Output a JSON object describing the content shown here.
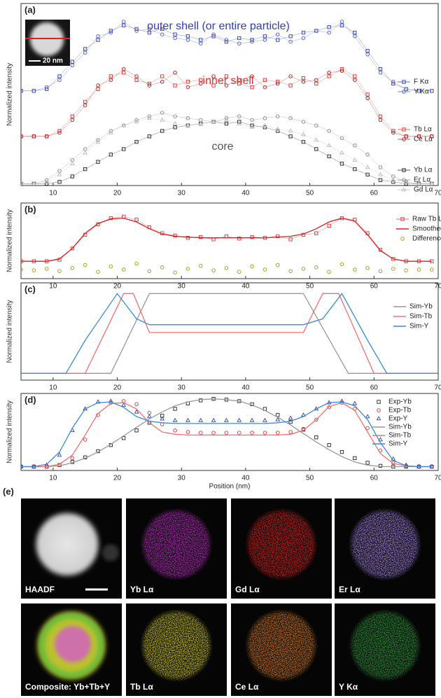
{
  "chart_data": [
    {
      "type": "line",
      "label": "(a)",
      "ylabel": "Normalized intensity",
      "xlim": [
        5,
        70
      ],
      "ylim": [
        0,
        1
      ],
      "xticks": [
        10,
        20,
        30,
        40,
        50,
        60,
        70
      ],
      "annotations": [
        {
          "text": "outer shell (or entire particle)",
          "color": "#2f3fb0"
        },
        {
          "text": "inner shell",
          "color": "#e03030"
        },
        {
          "text": "core",
          "color": "#555555"
        },
        {
          "text": "20 nm",
          "color": "#ffffff"
        }
      ],
      "x": [
        5,
        7,
        9,
        11,
        13,
        15,
        17,
        19,
        21,
        23,
        25,
        27,
        29,
        31,
        33,
        35,
        37,
        39,
        41,
        43,
        45,
        47,
        49,
        51,
        53,
        55,
        57,
        59,
        61,
        63,
        65,
        67,
        69
      ],
      "series": [
        {
          "name": "F Kα",
          "color": "#2f3fb0",
          "marker": "square",
          "line": "thin",
          "values": [
            0.52,
            0.52,
            0.53,
            0.6,
            0.68,
            0.75,
            0.8,
            0.85,
            0.88,
            0.86,
            0.84,
            0.86,
            0.83,
            0.82,
            0.8,
            0.82,
            0.79,
            0.81,
            0.8,
            0.82,
            0.8,
            0.82,
            0.84,
            0.85,
            0.87,
            0.88,
            0.84,
            0.74,
            0.64,
            0.56,
            0.53,
            0.52,
            0.52
          ]
        },
        {
          "name": "Y Kα",
          "color": "#5060c0",
          "marker": "circle",
          "line": "thin",
          "values": [
            0.52,
            0.52,
            0.54,
            0.58,
            0.66,
            0.73,
            0.82,
            0.84,
            0.9,
            0.85,
            0.86,
            0.83,
            0.81,
            0.8,
            0.78,
            0.83,
            0.8,
            0.78,
            0.79,
            0.8,
            0.83,
            0.79,
            0.81,
            0.85,
            0.84,
            0.9,
            0.82,
            0.72,
            0.62,
            0.57,
            0.53,
            0.52,
            0.52
          ]
        },
        {
          "name": "Tb Lα",
          "color": "#e03030",
          "marker": "square",
          "line": "thin",
          "values": [
            0.27,
            0.27,
            0.27,
            0.3,
            0.38,
            0.46,
            0.53,
            0.6,
            0.62,
            0.58,
            0.56,
            0.6,
            0.55,
            0.57,
            0.58,
            0.55,
            0.6,
            0.56,
            0.54,
            0.58,
            0.57,
            0.55,
            0.59,
            0.56,
            0.6,
            0.64,
            0.6,
            0.5,
            0.38,
            0.3,
            0.27,
            0.27,
            0.27
          ]
        },
        {
          "name": "Ce Lα",
          "color": "#a02020",
          "marker": "circle",
          "line": "thin",
          "values": [
            0.27,
            0.27,
            0.27,
            0.29,
            0.36,
            0.44,
            0.55,
            0.58,
            0.64,
            0.6,
            0.55,
            0.57,
            0.62,
            0.54,
            0.56,
            0.6,
            0.55,
            0.58,
            0.6,
            0.54,
            0.56,
            0.6,
            0.57,
            0.58,
            0.62,
            0.63,
            0.58,
            0.48,
            0.36,
            0.29,
            0.27,
            0.27,
            0.27
          ]
        },
        {
          "name": "Yb Lα",
          "color": "#222222",
          "marker": "square",
          "line": "thin",
          "values": [
            0.01,
            0.01,
            0.01,
            0.02,
            0.05,
            0.09,
            0.13,
            0.17,
            0.2,
            0.24,
            0.27,
            0.3,
            0.32,
            0.33,
            0.34,
            0.35,
            0.34,
            0.35,
            0.33,
            0.32,
            0.3,
            0.27,
            0.24,
            0.2,
            0.16,
            0.12,
            0.09,
            0.06,
            0.03,
            0.02,
            0.01,
            0.01,
            0.01
          ]
        },
        {
          "name": "Er Lα",
          "color": "#888888",
          "marker": "circle",
          "line": "thin",
          "values": [
            0.01,
            0.01,
            0.03,
            0.08,
            0.14,
            0.2,
            0.25,
            0.3,
            0.33,
            0.36,
            0.38,
            0.4,
            0.38,
            0.37,
            0.36,
            0.35,
            0.37,
            0.38,
            0.36,
            0.37,
            0.38,
            0.37,
            0.35,
            0.33,
            0.3,
            0.26,
            0.22,
            0.17,
            0.1,
            0.05,
            0.02,
            0.01,
            0.01
          ]
        },
        {
          "name": "Gd Lα",
          "color": "#bbbbbb",
          "marker": "triangle",
          "line": "thin",
          "values": [
            0.01,
            0.01,
            0.02,
            0.06,
            0.12,
            0.18,
            0.24,
            0.29,
            0.33,
            0.35,
            0.37,
            0.36,
            0.34,
            0.33,
            0.34,
            0.35,
            0.36,
            0.34,
            0.32,
            0.33,
            0.31,
            0.3,
            0.28,
            0.25,
            0.22,
            0.18,
            0.14,
            0.1,
            0.06,
            0.03,
            0.02,
            0.01,
            0.01
          ]
        }
      ]
    },
    {
      "type": "line",
      "label": "(b)",
      "ylabel": "Normalized intensity",
      "xlim": [
        5,
        70
      ],
      "ylim": [
        0,
        1
      ],
      "xticks": [
        10,
        20,
        30,
        40,
        50,
        60,
        70
      ],
      "x": [
        5,
        7,
        9,
        11,
        13,
        15,
        17,
        19,
        21,
        23,
        25,
        27,
        29,
        31,
        33,
        35,
        37,
        39,
        41,
        43,
        45,
        47,
        49,
        51,
        53,
        55,
        57,
        59,
        61,
        63,
        65,
        67,
        69
      ],
      "series": [
        {
          "name": "Raw Tb Lα",
          "color": "#e03030",
          "marker": "square",
          "line": "thin",
          "values": [
            0.23,
            0.23,
            0.23,
            0.25,
            0.4,
            0.58,
            0.72,
            0.8,
            0.82,
            0.78,
            0.68,
            0.6,
            0.57,
            0.54,
            0.55,
            0.52,
            0.56,
            0.53,
            0.55,
            0.54,
            0.56,
            0.52,
            0.58,
            0.6,
            0.7,
            0.8,
            0.78,
            0.6,
            0.38,
            0.26,
            0.23,
            0.23,
            0.23
          ]
        },
        {
          "name": "Smoothed",
          "color": "#d42020",
          "marker": "none",
          "line": "solid",
          "values": [
            0.23,
            0.23,
            0.23,
            0.26,
            0.4,
            0.6,
            0.73,
            0.79,
            0.8,
            0.75,
            0.66,
            0.59,
            0.56,
            0.55,
            0.54,
            0.54,
            0.54,
            0.54,
            0.54,
            0.54,
            0.55,
            0.56,
            0.59,
            0.66,
            0.75,
            0.8,
            0.76,
            0.58,
            0.37,
            0.26,
            0.23,
            0.23,
            0.23
          ]
        },
        {
          "name": "Difference",
          "color": "#9a9a10",
          "marker": "circle",
          "line": "none",
          "values": [
            0.12,
            0.11,
            0.13,
            0.1,
            0.14,
            0.18,
            0.09,
            0.16,
            0.12,
            0.2,
            0.1,
            0.15,
            0.08,
            0.13,
            0.17,
            0.11,
            0.14,
            0.09,
            0.16,
            0.12,
            0.18,
            0.1,
            0.13,
            0.15,
            0.09,
            0.19,
            0.12,
            0.14,
            0.1,
            0.13,
            0.11,
            0.12,
            0.12
          ]
        }
      ]
    },
    {
      "type": "line",
      "label": "(c)",
      "ylabel": "Normalized intensity",
      "xlim": [
        5,
        70
      ],
      "ylim": [
        0,
        1
      ],
      "xticks": [
        10,
        20,
        30,
        40,
        50,
        60,
        70
      ],
      "series": [
        {
          "name": "Sim-Yb",
          "color": "#999999",
          "marker": "none",
          "line": "solid",
          "x": [
            5,
            19,
            25,
            49,
            56,
            70
          ],
          "values": [
            0.07,
            0.07,
            0.89,
            0.89,
            0.07,
            0.07
          ]
        },
        {
          "name": "Sim-Tb",
          "color": "#f07070",
          "marker": "none",
          "line": "solid",
          "x": [
            5,
            15,
            21,
            22.5,
            25,
            49,
            52,
            54.5,
            60,
            70
          ],
          "values": [
            0.07,
            0.07,
            0.89,
            0.89,
            0.49,
            0.49,
            0.89,
            0.89,
            0.07,
            0.07
          ]
        },
        {
          "name": "Sim-Y",
          "color": "#3a8ad8",
          "marker": "none",
          "line": "solid",
          "x": [
            5,
            12,
            15,
            20,
            23,
            25,
            49,
            52,
            55,
            59,
            62,
            70
          ],
          "values": [
            0.07,
            0.07,
            0.41,
            0.89,
            0.63,
            0.57,
            0.57,
            0.63,
            0.89,
            0.41,
            0.07,
            0.07
          ]
        }
      ]
    },
    {
      "type": "line",
      "label": "(d)",
      "ylabel": "Normalized intensity",
      "xlabel": "Position (nm)",
      "xlim": [
        5,
        70
      ],
      "ylim": [
        0,
        1
      ],
      "xticks": [
        10,
        20,
        30,
        40,
        50,
        60,
        70
      ],
      "x": [
        5,
        7,
        9,
        11,
        13,
        15,
        17,
        19,
        21,
        23,
        25,
        27,
        29,
        31,
        33,
        35,
        37,
        39,
        41,
        43,
        45,
        47,
        49,
        51,
        53,
        55,
        57,
        59,
        61,
        63,
        65,
        67,
        69
      ],
      "series": [
        {
          "name": "Exp-Yb",
          "color": "#222222",
          "marker": "square",
          "line": "none",
          "values": [
            0.05,
            0.05,
            0.05,
            0.07,
            0.11,
            0.17,
            0.25,
            0.33,
            0.42,
            0.52,
            0.62,
            0.71,
            0.8,
            0.87,
            0.91,
            0.93,
            0.92,
            0.9,
            0.86,
            0.8,
            0.72,
            0.63,
            0.53,
            0.43,
            0.33,
            0.24,
            0.16,
            0.1,
            0.06,
            0.05,
            0.05,
            0.05,
            0.05
          ]
        },
        {
          "name": "Exp-Tb",
          "color": "#e03030",
          "marker": "circle",
          "line": "none",
          "values": [
            0.05,
            0.05,
            0.05,
            0.07,
            0.16,
            0.4,
            0.72,
            0.88,
            0.9,
            0.86,
            0.75,
            0.6,
            0.52,
            0.5,
            0.49,
            0.49,
            0.49,
            0.49,
            0.49,
            0.49,
            0.49,
            0.5,
            0.54,
            0.66,
            0.82,
            0.88,
            0.8,
            0.55,
            0.26,
            0.1,
            0.06,
            0.05,
            0.05
          ]
        },
        {
          "name": "Exp-Y",
          "color": "#3040b0",
          "marker": "triangle",
          "line": "none",
          "values": [
            0.05,
            0.05,
            0.07,
            0.2,
            0.52,
            0.8,
            0.89,
            0.9,
            0.85,
            0.76,
            0.7,
            0.67,
            0.65,
            0.65,
            0.65,
            0.65,
            0.65,
            0.65,
            0.65,
            0.65,
            0.66,
            0.68,
            0.72,
            0.8,
            0.88,
            0.9,
            0.87,
            0.7,
            0.4,
            0.15,
            0.07,
            0.05,
            0.05
          ]
        },
        {
          "name": "Sim-Yb",
          "color": "#999999",
          "marker": "none",
          "line": "solid",
          "values": [
            0.05,
            0.05,
            0.05,
            0.06,
            0.1,
            0.16,
            0.24,
            0.34,
            0.45,
            0.56,
            0.67,
            0.76,
            0.84,
            0.89,
            0.92,
            0.93,
            0.92,
            0.9,
            0.85,
            0.78,
            0.69,
            0.59,
            0.48,
            0.37,
            0.27,
            0.18,
            0.11,
            0.07,
            0.05,
            0.05,
            0.05,
            0.05,
            0.05
          ]
        },
        {
          "name": "Sim-Tb",
          "color": "#f07070",
          "marker": "none",
          "line": "solid",
          "values": [
            0.05,
            0.05,
            0.05,
            0.08,
            0.2,
            0.46,
            0.74,
            0.87,
            0.88,
            0.8,
            0.62,
            0.5,
            0.47,
            0.46,
            0.46,
            0.46,
            0.46,
            0.46,
            0.46,
            0.46,
            0.46,
            0.47,
            0.52,
            0.66,
            0.83,
            0.88,
            0.78,
            0.5,
            0.22,
            0.09,
            0.06,
            0.05,
            0.05
          ]
        },
        {
          "name": "Sim-Y",
          "color": "#3a8ad8",
          "marker": "none",
          "line": "solid",
          "values": [
            0.05,
            0.05,
            0.08,
            0.24,
            0.55,
            0.8,
            0.88,
            0.89,
            0.82,
            0.7,
            0.64,
            0.62,
            0.61,
            0.61,
            0.61,
            0.61,
            0.61,
            0.61,
            0.61,
            0.61,
            0.62,
            0.64,
            0.7,
            0.8,
            0.88,
            0.89,
            0.84,
            0.66,
            0.36,
            0.13,
            0.06,
            0.05,
            0.05
          ]
        }
      ]
    }
  ],
  "figure_e": {
    "label": "(e)",
    "panels": [
      {
        "label": "HAADF",
        "color": "#e6e6e6"
      },
      {
        "label": "Yb Lα",
        "color": "#c030c8"
      },
      {
        "label": "Gd Lα",
        "color": "#e02222"
      },
      {
        "label": "Er Lα",
        "color": "#a888e8"
      },
      {
        "label": "Composite: Yb+Tb+Y",
        "color": "#c8d030"
      },
      {
        "label": "Tb Lα",
        "color": "#d8d020"
      },
      {
        "label": "Ce Lα",
        "color": "#e08020"
      },
      {
        "label": "Y Kα",
        "color": "#30a040"
      }
    ]
  }
}
